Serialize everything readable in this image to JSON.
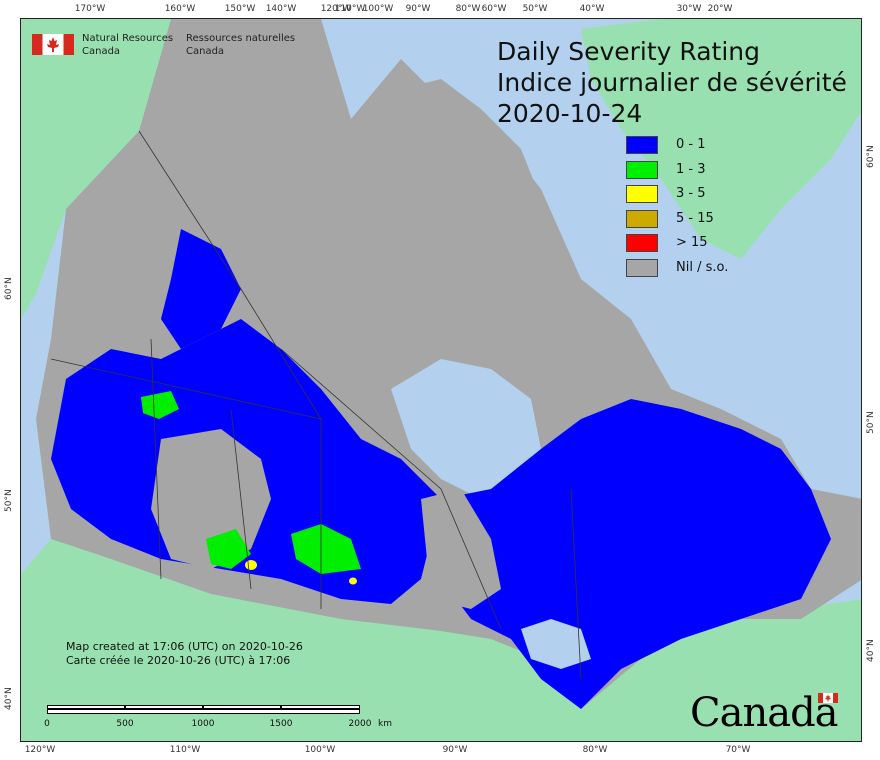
{
  "map": {
    "title": [
      "Daily Severity Rating",
      "Indice journalier de sévérité",
      "2020-10-24"
    ],
    "agency": {
      "en": [
        "Natural Resources",
        "Canada"
      ],
      "fr": [
        "Ressources naturelles",
        "Canada"
      ]
    },
    "legend": [
      {
        "label": "0 - 1",
        "color": "#0000ff"
      },
      {
        "label": "1 - 3",
        "color": "#00ee00"
      },
      {
        "label": "3 - 5",
        "color": "#ffff00"
      },
      {
        "label": "5 - 15",
        "color": "#ccaa00"
      },
      {
        "label": "> 15",
        "color": "#ff0000"
      },
      {
        "label": "Nil / s.o.",
        "color": "#a6a6a6"
      }
    ],
    "created": [
      "Map created at 17:06 (UTC) on 2020-10-26",
      "Carte créée le 2020-10-26 (UTC) à 17:06"
    ],
    "scale": {
      "labels": [
        "0",
        "500",
        "1000",
        "1500",
        "2000"
      ],
      "unit": "km"
    },
    "wordmark": "Canada",
    "ticks": {
      "top": [
        "170°W",
        "160°W",
        "150°W",
        "140°W",
        "120°W",
        "110°W",
        "100°W",
        "90°W",
        "80°W",
        "60°W",
        "50°W",
        "40°W",
        "30°W",
        "20°W"
      ],
      "bottom": [
        "120°W",
        "110°W",
        "100°W",
        "90°W",
        "80°W",
        "70°W"
      ],
      "right": [
        "60°N",
        "50°N",
        "40°N"
      ],
      "left": [
        "60°N",
        "50°N",
        "40°N"
      ]
    },
    "colors": {
      "water": "#b3d1ef",
      "foreign_land": "#98e0b0",
      "nil": "#a6a6a6",
      "boundary": "#333333"
    }
  }
}
